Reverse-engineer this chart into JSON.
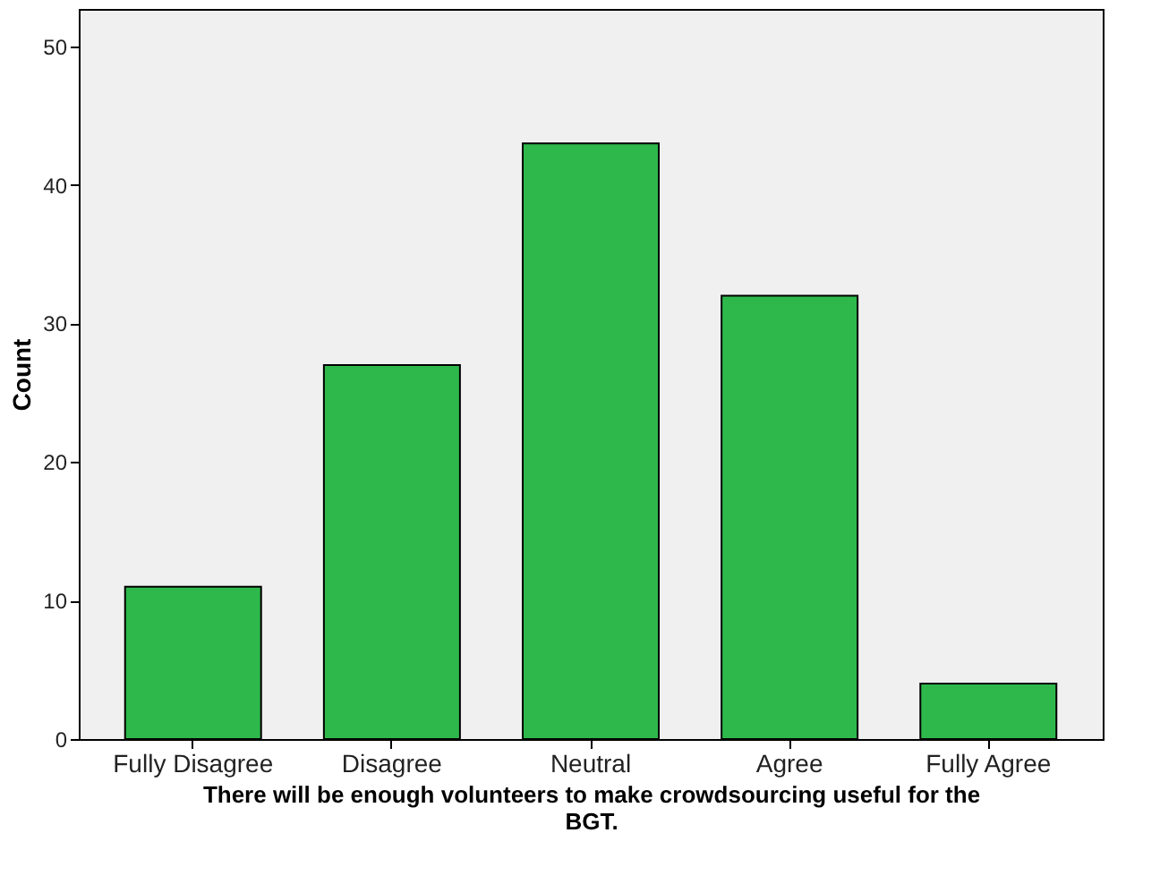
{
  "chart_data": {
    "type": "bar",
    "xlabel": "There will be enough volunteers to make crowdsourcing useful for the BGT.",
    "ylabel": "Count",
    "categories": [
      "Fully Disagree",
      "Disagree",
      "Neutral",
      "Agree",
      "Fully Agree"
    ],
    "values": [
      11,
      27,
      43,
      32,
      4
    ],
    "color": "#2eb84b",
    "ylim": [
      0,
      52.7
    ],
    "yticks": [
      0,
      10,
      20,
      30,
      40,
      50
    ],
    "grid": false
  }
}
